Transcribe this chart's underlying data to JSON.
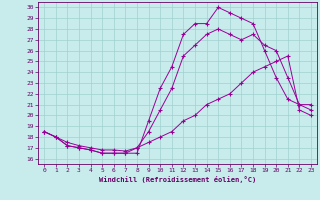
{
  "xlabel": "Windchill (Refroidissement éolien,°C)",
  "background_color": "#c8ecec",
  "grid_color": "#a0d0d0",
  "line_color": "#990099",
  "xlim": [
    -0.5,
    23.5
  ],
  "ylim": [
    15.5,
    30.5
  ],
  "yticks": [
    16,
    17,
    18,
    19,
    20,
    21,
    22,
    23,
    24,
    25,
    26,
    27,
    28,
    29,
    30
  ],
  "xticks": [
    0,
    1,
    2,
    3,
    4,
    5,
    6,
    7,
    8,
    9,
    10,
    11,
    12,
    13,
    14,
    15,
    16,
    17,
    18,
    19,
    20,
    21,
    22,
    23
  ],
  "s1_x": [
    0,
    1,
    2,
    3,
    4,
    5,
    6,
    7,
    8,
    9,
    10,
    11,
    12,
    13,
    14,
    15,
    16,
    17,
    18,
    19,
    20,
    21,
    22,
    23
  ],
  "s1_y": [
    18.5,
    18.0,
    17.2,
    17.0,
    16.8,
    16.5,
    16.5,
    16.5,
    16.5,
    19.5,
    22.5,
    24.5,
    27.5,
    28.5,
    28.5,
    30.0,
    29.5,
    29.0,
    28.5,
    26.0,
    23.5,
    21.5,
    21.0,
    20.5
  ],
  "s2_x": [
    0,
    1,
    2,
    3,
    4,
    5,
    6,
    7,
    8,
    9,
    10,
    11,
    12,
    13,
    14,
    15,
    16,
    17,
    18,
    19,
    20,
    21,
    22,
    23
  ],
  "s2_y": [
    18.5,
    18.0,
    17.2,
    17.0,
    16.8,
    16.5,
    16.5,
    16.5,
    17.0,
    18.5,
    20.5,
    22.5,
    25.5,
    26.5,
    27.5,
    28.0,
    27.5,
    27.0,
    27.5,
    26.5,
    26.0,
    23.5,
    21.0,
    21.0
  ],
  "s3_x": [
    0,
    1,
    2,
    3,
    4,
    5,
    6,
    7,
    8,
    9,
    10,
    11,
    12,
    13,
    14,
    15,
    16,
    17,
    18,
    19,
    20,
    21,
    22,
    23
  ],
  "s3_y": [
    18.5,
    18.0,
    17.5,
    17.2,
    17.0,
    16.8,
    16.8,
    16.7,
    17.0,
    17.5,
    18.0,
    18.5,
    19.5,
    20.0,
    21.0,
    21.5,
    22.0,
    23.0,
    24.0,
    24.5,
    25.0,
    25.5,
    20.5,
    20.0
  ]
}
